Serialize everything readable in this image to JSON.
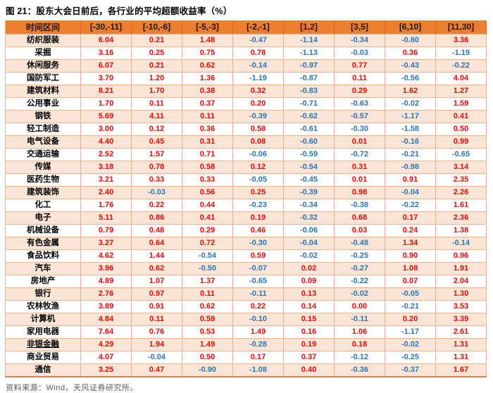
{
  "title": "图 21：股东大会日前后，各行业的平均超额收益率（%）",
  "source": "资料来源：Wind，天风证券研究所。",
  "colors": {
    "header_bg": "#ED7D31",
    "row_alt_bg": "#FBE5D6",
    "row_bg": "#FFFFFF",
    "positive_text": "#FF0000",
    "negative_text": "#2E75B6",
    "grid_line": "#F2B48C"
  },
  "chart_data": {
    "type": "table",
    "title": "股东大会日前后，各行业的平均超额收益率（%）",
    "header": [
      "时间区间",
      "[-30,-11]",
      "[-10,-6]",
      "[-5,-3]",
      "[-2,-1]",
      "[1,2]",
      "[3,5]",
      "[6,10]",
      "[11,30]"
    ],
    "rows": [
      {
        "industry": "纺织服装",
        "values": [
          6.04,
          0.21,
          1.48,
          -0.47,
          -1.14,
          -0.34,
          -0.8,
          3.36
        ]
      },
      {
        "industry": "采掘",
        "values": [
          3.16,
          0.25,
          0.75,
          0.78,
          -1.13,
          -0.03,
          0.36,
          -1.19
        ]
      },
      {
        "industry": "休闲服务",
        "values": [
          6.07,
          0.21,
          0.62,
          -0.14,
          -0.97,
          0.77,
          -0.43,
          -0.22
        ]
      },
      {
        "industry": "国防军工",
        "values": [
          3.7,
          1.2,
          1.36,
          -1.19,
          -0.87,
          0.11,
          -0.56,
          4.04
        ]
      },
      {
        "industry": "建筑材料",
        "values": [
          8.21,
          1.7,
          0.38,
          0.32,
          -0.83,
          0.29,
          1.62,
          1.27
        ]
      },
      {
        "industry": "公用事业",
        "values": [
          1.7,
          0.11,
          0.37,
          0.2,
          -0.71,
          -0.63,
          -0.02,
          1.59
        ]
      },
      {
        "industry": "钢铁",
        "values": [
          5.69,
          4.11,
          0.11,
          -0.39,
          -0.62,
          -0.57,
          -1.17,
          0.41
        ]
      },
      {
        "industry": "轻工制造",
        "values": [
          3.0,
          0.12,
          0.36,
          0.58,
          -0.61,
          -0.3,
          -1.58,
          0.5
        ]
      },
      {
        "industry": "电气设备",
        "values": [
          4.4,
          0.45,
          0.31,
          0.08,
          -0.6,
          0.01,
          -0.16,
          0.99
        ]
      },
      {
        "industry": "交通运输",
        "values": [
          2.52,
          1.57,
          0.71,
          -0.06,
          -0.59,
          -0.72,
          -0.21,
          -0.65
        ]
      },
      {
        "industry": "传媒",
        "values": [
          3.18,
          0.78,
          0.58,
          0.12,
          -0.54,
          0.31,
          -0.98,
          3.14
        ]
      },
      {
        "industry": "医药生物",
        "values": [
          3.21,
          0.33,
          0.33,
          -0.05,
          -0.45,
          0.01,
          0.91,
          2.35
        ]
      },
      {
        "industry": "建筑装饰",
        "values": [
          2.4,
          -0.03,
          0.56,
          0.25,
          -0.39,
          0.98,
          -0.04,
          2.26
        ]
      },
      {
        "industry": "化工",
        "values": [
          1.76,
          0.22,
          0.44,
          -0.23,
          -0.34,
          -0.38,
          -0.22,
          1.61
        ]
      },
      {
        "industry": "电子",
        "values": [
          5.11,
          0.86,
          0.41,
          0.19,
          -0.32,
          0.68,
          0.17,
          2.36
        ]
      },
      {
        "industry": "机械设备",
        "values": [
          0.79,
          0.48,
          0.29,
          0.46,
          -0.06,
          0.03,
          0.24,
          1.38
        ]
      },
      {
        "industry": "有色金属",
        "values": [
          3.27,
          0.64,
          0.72,
          -0.3,
          -0.04,
          -0.48,
          1.34,
          -0.14
        ]
      },
      {
        "industry": "食品饮料",
        "values": [
          4.62,
          1.44,
          -0.54,
          0.59,
          -0.02,
          -0.25,
          0.9,
          0.96
        ]
      },
      {
        "industry": "汽车",
        "values": [
          3.96,
          0.62,
          -0.5,
          -0.07,
          0.02,
          -0.27,
          1.08,
          1.91
        ]
      },
      {
        "industry": "房地产",
        "values": [
          4.89,
          1.07,
          1.37,
          -0.65,
          0.09,
          -0.22,
          0.07,
          2.04
        ]
      },
      {
        "industry": "银行",
        "values": [
          2.76,
          0.97,
          0.11,
          -0.11,
          0.13,
          -0.02,
          -0.05,
          1.3
        ]
      },
      {
        "industry": "农林牧渔",
        "values": [
          3.89,
          0.91,
          0.62,
          0.22,
          0.14,
          0.0,
          -0.21,
          3.53
        ]
      },
      {
        "industry": "计算机",
        "values": [
          4.84,
          0.11,
          0.59,
          -0.1,
          0.15,
          -0.11,
          0.2,
          3.39
        ]
      },
      {
        "industry": "家用电器",
        "values": [
          7.64,
          0.76,
          0.53,
          1.49,
          0.16,
          1.06,
          -1.17,
          2.61
        ]
      },
      {
        "industry": "非银金融",
        "underline": true,
        "values": [
          4.29,
          1.94,
          1.49,
          -0.28,
          0.19,
          0.18,
          -0.02,
          1.31
        ]
      },
      {
        "industry": "商业贸易",
        "values": [
          4.07,
          -0.04,
          0.5,
          0.17,
          0.37,
          -0.12,
          -0.25,
          1.31
        ]
      },
      {
        "industry": "通信",
        "values": [
          3.25,
          0.47,
          -0.9,
          -1.08,
          0.4,
          -0.36,
          -0.37,
          1.67
        ]
      }
    ]
  }
}
